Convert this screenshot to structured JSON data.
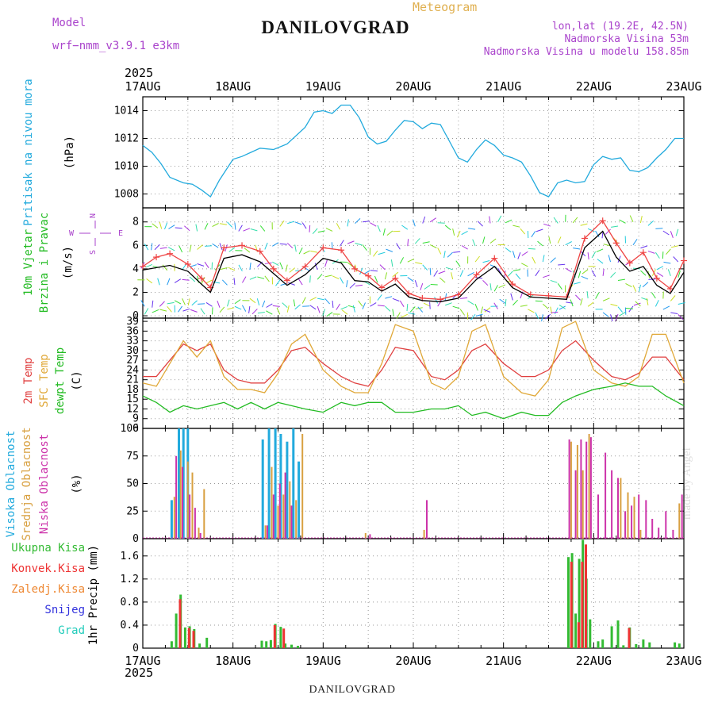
{
  "header": {
    "title": "DANILOVGRAD",
    "meteogram_label": "Meteogram",
    "model_label": "Model",
    "model_name": "wrf−nmm_v3.9.1  e3km",
    "lonlat": "lon,lat (19.2E, 42.5N)",
    "altitude": "Nadmorska Visina 53m",
    "model_altitude": "Nadmorska Visina u modelu 158.85m"
  },
  "footer": {
    "station": "DANILOVGRAD",
    "credit": "made by Angel"
  },
  "time_axis": {
    "year": "2025",
    "ticks": [
      "17AUG",
      "18AUG",
      "19AUG",
      "20AUG",
      "21AUG",
      "22AUG",
      "23AUG"
    ]
  },
  "colors": {
    "pressure": "#22aadd",
    "wind_speed": "#000000",
    "gust": "#ee4444",
    "temp2m": "#e04040",
    "sfc_temp": "#e0a838",
    "dewpt": "#22bb22",
    "cloud_high": "#22aadd",
    "cloud_mid": "#d8a040",
    "cloud_low": "#cc33aa",
    "precip_total": "#33bb33",
    "precip_conv": "#ee3333",
    "precip_frozen": "#ee8833",
    "snow": "#3333dd",
    "hail": "#22ccbb"
  },
  "chart_data": [
    {
      "type": "line",
      "id": "pressure",
      "ylabel_colored": "Pritisak na nivou mora",
      "unit": "(hPa)",
      "ylim": [
        1007,
        1015
      ],
      "yticks": [
        "1008",
        "1010",
        "1012",
        "1014"
      ],
      "series": [
        {
          "name": "Pritisak na nivou mora",
          "color": "#22aadd",
          "x": [
            0,
            0.1,
            0.2,
            0.3,
            0.45,
            0.55,
            0.65,
            0.75,
            0.85,
            1.0,
            1.1,
            1.2,
            1.3,
            1.45,
            1.6,
            1.8,
            1.9,
            2.0,
            2.1,
            2.2,
            2.3,
            2.4,
            2.5,
            2.6,
            2.7,
            2.8,
            2.9,
            3.0,
            3.1,
            3.2,
            3.3,
            3.4,
            3.5,
            3.6,
            3.7,
            3.8,
            3.9,
            4.0,
            4.1,
            4.2,
            4.3,
            4.4,
            4.5,
            4.6,
            4.7,
            4.8,
            4.9,
            5.0,
            5.1,
            5.2,
            5.3,
            5.4,
            5.5,
            5.6,
            5.7,
            5.8,
            5.9,
            6.0
          ],
          "values": [
            1011.5,
            1011.0,
            1010.2,
            1009.2,
            1008.8,
            1008.7,
            1008.3,
            1007.8,
            1009.0,
            1010.5,
            1010.7,
            1011.0,
            1011.3,
            1011.2,
            1011.6,
            1012.8,
            1013.9,
            1014.0,
            1013.8,
            1014.4,
            1014.4,
            1013.5,
            1012.1,
            1011.6,
            1011.8,
            1012.6,
            1013.3,
            1013.2,
            1012.7,
            1013.1,
            1013.0,
            1011.8,
            1010.6,
            1010.3,
            1011.2,
            1011.9,
            1011.5,
            1010.8,
            1010.6,
            1010.3,
            1009.3,
            1008.1,
            1007.8,
            1008.8,
            1009.0,
            1008.8,
            1008.9,
            1010.1,
            1010.7,
            1010.5,
            1010.6,
            1009.7,
            1009.6,
            1009.9,
            1010.6,
            1011.2,
            1012.0,
            1012.0
          ]
        }
      ]
    },
    {
      "type": "line",
      "id": "wind",
      "ylabel_colored_1": "10m Vjetar",
      "ylabel_colored_2": "Brzina i Pravac",
      "unit": "(m/s)",
      "compass": {
        "n": "N",
        "s": "S",
        "e": "E",
        "w": "W"
      },
      "ylim": [
        -0.2,
        9.2
      ],
      "yticks": [
        "0",
        "2",
        "4",
        "6",
        "8"
      ],
      "series": [
        {
          "name": "10m wind speed",
          "color": "#000000",
          "x": [
            0,
            0.15,
            0.3,
            0.5,
            0.65,
            0.75,
            0.9,
            1.1,
            1.3,
            1.45,
            1.6,
            1.8,
            2.0,
            2.2,
            2.35,
            2.5,
            2.65,
            2.8,
            2.95,
            3.1,
            3.3,
            3.5,
            3.7,
            3.9,
            4.1,
            4.3,
            4.5,
            4.7,
            4.9,
            5.1,
            5.25,
            5.4,
            5.55,
            5.7,
            5.85,
            6.0
          ],
          "values": [
            3.9,
            4.1,
            4.3,
            3.8,
            2.7,
            2.0,
            4.9,
            5.2,
            4.6,
            3.6,
            2.6,
            3.5,
            4.9,
            4.5,
            3.0,
            2.9,
            2.1,
            2.7,
            1.6,
            1.3,
            1.2,
            1.5,
            3.1,
            4.2,
            2.4,
            1.6,
            1.5,
            1.4,
            5.8,
            7.2,
            5.0,
            3.8,
            4.2,
            2.6,
            1.9,
            3.7
          ]
        },
        {
          "name": "Gust",
          "color": "#ee4444",
          "x": [
            0,
            0.15,
            0.3,
            0.5,
            0.65,
            0.75,
            0.9,
            1.1,
            1.3,
            1.45,
            1.6,
            1.8,
            2.0,
            2.2,
            2.35,
            2.5,
            2.65,
            2.8,
            2.95,
            3.1,
            3.3,
            3.5,
            3.7,
            3.9,
            4.1,
            4.3,
            4.5,
            4.7,
            4.9,
            5.1,
            5.25,
            5.4,
            5.55,
            5.7,
            5.85,
            6.0
          ],
          "values": [
            4.2,
            5.0,
            5.3,
            4.4,
            3.2,
            2.4,
            5.8,
            6.0,
            5.5,
            4.0,
            3.0,
            4.2,
            5.8,
            5.6,
            4.0,
            3.4,
            2.4,
            3.2,
            1.9,
            1.5,
            1.4,
            1.8,
            3.5,
            4.9,
            2.7,
            1.8,
            1.7,
            1.6,
            6.6,
            8.1,
            6.2,
            4.5,
            5.4,
            3.2,
            2.3,
            4.7
          ]
        }
      ]
    },
    {
      "type": "line",
      "id": "temperature",
      "ylabel_colored_1": "2m Temp",
      "ylabel_colored_2": "SFC Temp",
      "ylabel_colored_3": "dewpt Temp",
      "unit": "(C)",
      "ylim": [
        6,
        40
      ],
      "yticks": [
        "6",
        "9",
        "12",
        "15",
        "18",
        "21",
        "24",
        "27",
        "30",
        "33",
        "36",
        "39"
      ],
      "series": [
        {
          "name": "2m Temp",
          "color": "#e04040",
          "x": [
            0,
            0.15,
            0.3,
            0.45,
            0.6,
            0.75,
            0.9,
            1.05,
            1.2,
            1.35,
            1.5,
            1.65,
            1.8,
            2.0,
            2.2,
            2.35,
            2.5,
            2.65,
            2.8,
            3.0,
            3.2,
            3.35,
            3.5,
            3.65,
            3.8,
            4.0,
            4.2,
            4.35,
            4.5,
            4.65,
            4.8,
            5.0,
            5.2,
            5.35,
            5.5,
            5.65,
            5.8,
            6.0
          ],
          "values": [
            22,
            22,
            27,
            32,
            30,
            32,
            24,
            21,
            20,
            20,
            24,
            30,
            31,
            26,
            22,
            20,
            19,
            24,
            31,
            30,
            22,
            21,
            24,
            30,
            32,
            26,
            22,
            22,
            24,
            30,
            33,
            27,
            22,
            21,
            23,
            28,
            28,
            21
          ]
        },
        {
          "name": "SFC Temp",
          "color": "#e0a838",
          "x": [
            0,
            0.15,
            0.3,
            0.45,
            0.6,
            0.75,
            0.9,
            1.05,
            1.2,
            1.35,
            1.5,
            1.65,
            1.8,
            2.0,
            2.2,
            2.35,
            2.5,
            2.65,
            2.8,
            3.0,
            3.2,
            3.35,
            3.5,
            3.65,
            3.8,
            4.0,
            4.2,
            4.35,
            4.5,
            4.65,
            4.8,
            5.0,
            5.2,
            5.35,
            5.5,
            5.65,
            5.8,
            6.0
          ],
          "values": [
            20,
            19,
            26,
            33,
            28,
            33,
            22,
            18,
            18,
            17,
            23,
            32,
            35,
            24,
            19,
            17,
            17,
            26,
            38,
            36,
            20,
            18,
            22,
            36,
            38,
            22,
            17,
            16,
            21,
            37,
            39,
            24,
            20,
            19,
            22,
            35,
            35,
            20
          ]
        },
        {
          "name": "dewpt Temp",
          "color": "#22bb22",
          "x": [
            0,
            0.15,
            0.3,
            0.45,
            0.6,
            0.75,
            0.9,
            1.05,
            1.2,
            1.35,
            1.5,
            1.65,
            1.8,
            2.0,
            2.2,
            2.35,
            2.5,
            2.65,
            2.8,
            3.0,
            3.2,
            3.35,
            3.5,
            3.65,
            3.8,
            4.0,
            4.2,
            4.35,
            4.5,
            4.65,
            4.8,
            5.0,
            5.2,
            5.35,
            5.5,
            5.65,
            5.8,
            6.0
          ],
          "values": [
            16,
            14,
            11,
            13,
            12,
            13,
            14,
            12,
            14,
            12,
            14,
            13,
            12,
            11,
            14,
            13,
            14,
            14,
            11,
            11,
            12,
            12,
            13,
            10,
            11,
            9,
            11,
            10,
            10,
            14,
            16,
            18,
            19,
            20,
            19,
            19,
            16,
            13
          ]
        }
      ]
    },
    {
      "type": "bar",
      "id": "clouds",
      "ylabel_colored_1": "Visoka Oblacnost",
      "ylabel_colored_2": "Srednja Oblacnost",
      "ylabel_colored_3": "Niska Oblacnost",
      "unit": "(%)",
      "ylim": [
        0,
        100
      ],
      "yticks": [
        "0",
        "25",
        "50",
        "75",
        "100"
      ],
      "series": [
        {
          "name": "Visoka Oblacnost",
          "color": "#22aadd",
          "x": [
            0.32,
            0.4,
            0.45,
            0.5,
            1.33,
            1.4,
            1.47,
            1.53,
            1.6,
            1.67,
            1.73
          ],
          "values": [
            35,
            100,
            100,
            100,
            90,
            100,
            100,
            95,
            88,
            100,
            70
          ]
        },
        {
          "name": "Srednja Oblacnost",
          "color": "#d8a040",
          "x": [
            0.35,
            0.42,
            0.5,
            0.55,
            0.62,
            0.68,
            1.36,
            1.43,
            1.5,
            1.56,
            1.63,
            1.7,
            1.77,
            2.47,
            3.12,
            4.75,
            4.82,
            4.88,
            4.95,
            5.3,
            5.38,
            5.45,
            5.52,
            5.95
          ],
          "values": [
            38,
            80,
            70,
            60,
            10,
            45,
            12,
            65,
            30,
            40,
            52,
            35,
            95,
            5,
            8,
            88,
            85,
            62,
            95,
            55,
            42,
            38,
            8,
            32
          ]
        },
        {
          "name": "Niska Oblacnost",
          "color": "#cc33aa",
          "x": [
            0.37,
            0.44,
            0.52,
            0.58,
            0.64,
            1.38,
            1.45,
            1.52,
            1.58,
            1.65,
            2.52,
            3.15,
            4.73,
            4.8,
            4.86,
            4.92,
            4.97,
            5.05,
            5.13,
            5.2,
            5.27,
            5.35,
            5.42,
            5.5,
            5.58,
            5.65,
            5.72,
            5.8,
            5.88,
            5.98
          ],
          "values": [
            75,
            65,
            40,
            28,
            5,
            12,
            40,
            50,
            60,
            30,
            4,
            35,
            90,
            62,
            90,
            88,
            92,
            40,
            78,
            62,
            55,
            25,
            30,
            40,
            35,
            18,
            10,
            25,
            8,
            40
          ]
        }
      ]
    },
    {
      "type": "bar",
      "id": "precip",
      "ylabel_colored_1": "Ukupna Kisa",
      "ylabel_colored_2": "Konvek.Kisa",
      "ylabel_colored_3": "Zaledj.Kisa",
      "ylabel_colored_4": "Snijeg",
      "ylabel_colored_5": "Grad",
      "unit": "1hr Precip (mm)",
      "ylim": [
        0,
        1.9
      ],
      "yticks": [
        "0",
        "0.4",
        "0.8",
        "1.2",
        "1.6"
      ],
      "series": [
        {
          "name": "Ukupna Kisa",
          "color": "#33bb33",
          "x": [
            0.32,
            0.37,
            0.42,
            0.47,
            0.52,
            0.57,
            0.63,
            0.71,
            1.32,
            1.37,
            1.42,
            1.47,
            1.53,
            1.58,
            1.65,
            1.72,
            4.72,
            4.76,
            4.8,
            4.84,
            4.88,
            4.92,
            4.96,
            5.05,
            5.1,
            5.2,
            5.27,
            5.33,
            5.4,
            5.47,
            5.55,
            5.62,
            5.9,
            5.95
          ],
          "values": [
            0.12,
            0.6,
            0.93,
            0.36,
            0.38,
            0.33,
            0.08,
            0.18,
            0.13,
            0.12,
            0.14,
            0.42,
            0.37,
            0.08,
            0.06,
            0.04,
            1.58,
            1.65,
            0.6,
            1.55,
            1.88,
            1.2,
            0.5,
            0.12,
            0.15,
            0.38,
            0.48,
            0.05,
            0.36,
            0.07,
            0.15,
            0.1,
            0.1,
            0.08
          ]
        },
        {
          "name": "Konvek.Kisa",
          "color": "#ee3333",
          "x": [
            0.4,
            0.5,
            0.55,
            1.45,
            1.55,
            4.74,
            4.82,
            4.86,
            4.9,
            5.38
          ],
          "values": [
            0.85,
            0.35,
            0.3,
            0.4,
            0.34,
            1.5,
            0.45,
            1.5,
            1.8,
            0.35
          ]
        }
      ]
    }
  ]
}
